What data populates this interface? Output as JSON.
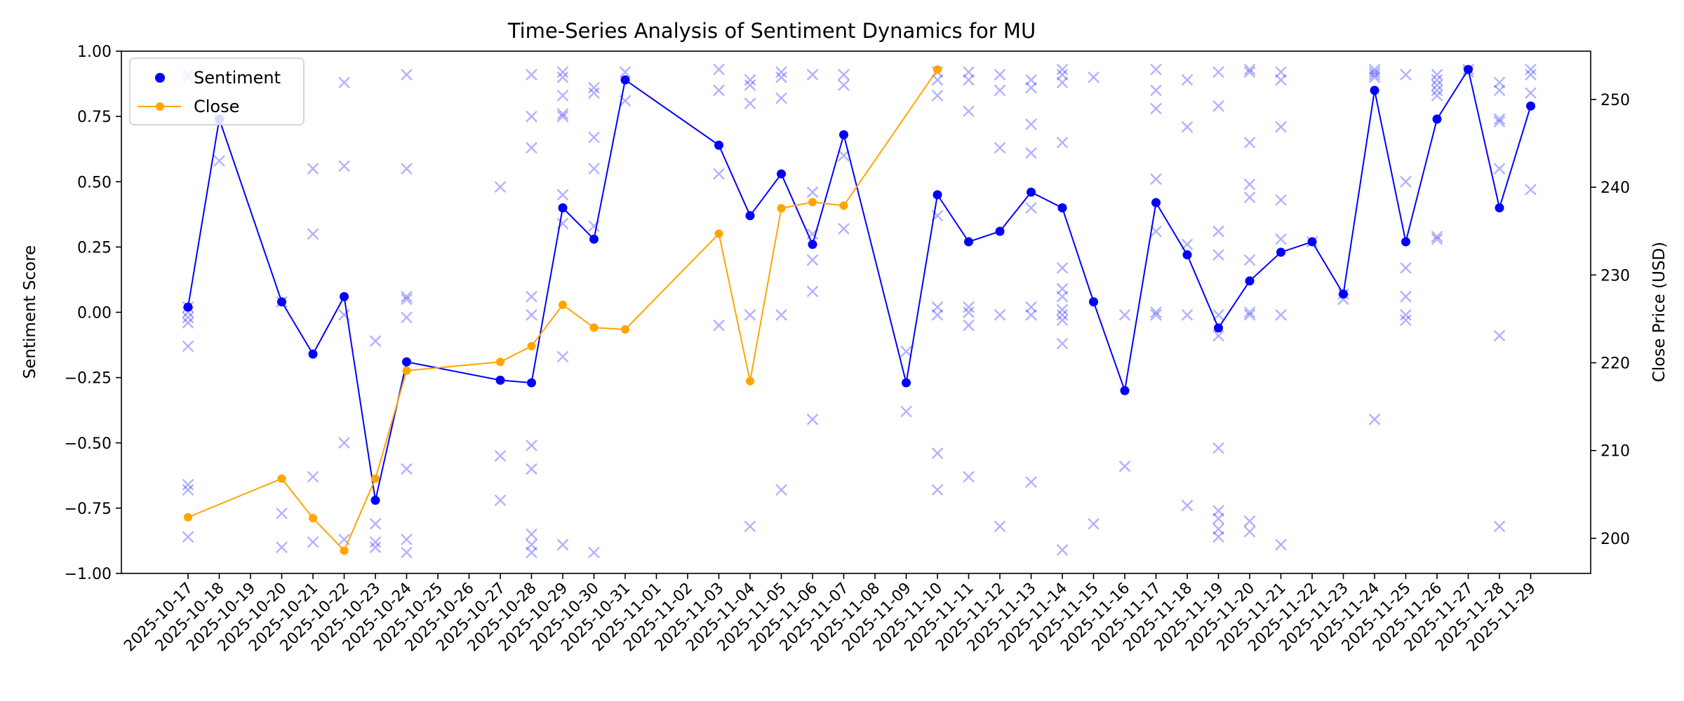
{
  "chart_data": {
    "type": "line",
    "title": "Time-Series Analysis of Sentiment Dynamics for MU",
    "ylabel": "Sentiment Score",
    "y2label": "Close Price (USD)",
    "ylim": [
      -1.0,
      1.0
    ],
    "y2lim": [
      196,
      255.5
    ],
    "y_ticks": [
      "−1.00",
      "−0.75",
      "−0.50",
      "−0.25",
      "0.00",
      "0.25",
      "0.50",
      "0.75",
      "1.00"
    ],
    "y_tick_values": [
      -1.0,
      -0.75,
      -0.5,
      -0.25,
      0.0,
      0.25,
      0.5,
      0.75,
      1.0
    ],
    "y2_ticks": [
      "200",
      "210",
      "220",
      "230",
      "240",
      "250"
    ],
    "y2_tick_values": [
      200,
      210,
      220,
      230,
      240,
      250
    ],
    "legend_position": "top-left",
    "colors": {
      "sentiment": "#0000ff",
      "close": "#ffa500",
      "scatter": "#0000ff"
    },
    "dates": [
      "2025-10-17",
      "2025-10-18",
      "2025-10-19",
      "2025-10-20",
      "2025-10-21",
      "2025-10-22",
      "2025-10-23",
      "2025-10-24",
      "2025-10-25",
      "2025-10-26",
      "2025-10-27",
      "2025-10-28",
      "2025-10-29",
      "2025-10-30",
      "2025-10-31",
      "2025-11-01",
      "2025-11-02",
      "2025-11-03",
      "2025-11-04",
      "2025-11-05",
      "2025-11-06",
      "2025-11-07",
      "2025-11-08",
      "2025-11-09",
      "2025-11-10",
      "2025-11-11",
      "2025-11-12",
      "2025-11-13",
      "2025-11-14",
      "2025-11-15",
      "2025-11-16",
      "2025-11-17",
      "2025-11-18",
      "2025-11-19",
      "2025-11-20",
      "2025-11-21",
      "2025-11-22",
      "2025-11-23",
      "2025-11-24",
      "2025-11-25",
      "2025-11-26",
      "2025-11-27",
      "2025-11-28",
      "2025-11-29"
    ],
    "series": [
      {
        "name": "Sentiment",
        "axis": "left",
        "points": [
          {
            "x": "2025-10-17",
            "y": 0.02
          },
          {
            "x": "2025-10-18",
            "y": 0.74
          },
          {
            "x": "2025-10-20",
            "y": 0.04
          },
          {
            "x": "2025-10-21",
            "y": -0.16
          },
          {
            "x": "2025-10-22",
            "y": 0.06
          },
          {
            "x": "2025-10-23",
            "y": -0.72
          },
          {
            "x": "2025-10-24",
            "y": -0.19
          },
          {
            "x": "2025-10-27",
            "y": -0.26
          },
          {
            "x": "2025-10-28",
            "y": -0.27
          },
          {
            "x": "2025-10-29",
            "y": 0.4
          },
          {
            "x": "2025-10-30",
            "y": 0.28
          },
          {
            "x": "2025-10-31",
            "y": 0.89
          },
          {
            "x": "2025-11-03",
            "y": 0.64
          },
          {
            "x": "2025-11-04",
            "y": 0.37
          },
          {
            "x": "2025-11-05",
            "y": 0.53
          },
          {
            "x": "2025-11-06",
            "y": 0.26
          },
          {
            "x": "2025-11-07",
            "y": 0.68
          },
          {
            "x": "2025-11-09",
            "y": -0.27
          },
          {
            "x": "2025-11-10",
            "y": 0.45
          },
          {
            "x": "2025-11-11",
            "y": 0.27
          },
          {
            "x": "2025-11-12",
            "y": 0.31
          },
          {
            "x": "2025-11-13",
            "y": 0.46
          },
          {
            "x": "2025-11-14",
            "y": 0.4
          },
          {
            "x": "2025-11-15",
            "y": 0.04
          },
          {
            "x": "2025-11-16",
            "y": -0.3
          },
          {
            "x": "2025-11-17",
            "y": 0.42
          },
          {
            "x": "2025-11-18",
            "y": 0.22
          },
          {
            "x": "2025-11-19",
            "y": -0.06
          },
          {
            "x": "2025-11-20",
            "y": 0.12
          },
          {
            "x": "2025-11-21",
            "y": 0.23
          },
          {
            "x": "2025-11-22",
            "y": 0.27
          },
          {
            "x": "2025-11-23",
            "y": 0.07
          },
          {
            "x": "2025-11-24",
            "y": 0.85
          },
          {
            "x": "2025-11-25",
            "y": 0.27
          },
          {
            "x": "2025-11-26",
            "y": 0.74
          },
          {
            "x": "2025-11-27",
            "y": 0.93
          },
          {
            "x": "2025-11-28",
            "y": 0.4
          },
          {
            "x": "2025-11-29",
            "y": 0.79
          }
        ]
      },
      {
        "name": "Close",
        "axis": "right",
        "points": [
          {
            "x": "2025-10-17",
            "y": 202.4
          },
          {
            "x": "2025-10-20",
            "y": 206.8
          },
          {
            "x": "2025-10-21",
            "y": 202.3
          },
          {
            "x": "2025-10-22",
            "y": 198.6
          },
          {
            "x": "2025-10-23",
            "y": 206.8
          },
          {
            "x": "2025-10-24",
            "y": 219.1
          },
          {
            "x": "2025-10-27",
            "y": 220.1
          },
          {
            "x": "2025-10-28",
            "y": 221.9
          },
          {
            "x": "2025-10-29",
            "y": 226.6
          },
          {
            "x": "2025-10-30",
            "y": 224.0
          },
          {
            "x": "2025-10-31",
            "y": 223.8
          },
          {
            "x": "2025-11-03",
            "y": 234.7
          },
          {
            "x": "2025-11-04",
            "y": 217.9
          },
          {
            "x": "2025-11-05",
            "y": 237.6
          },
          {
            "x": "2025-11-06",
            "y": 238.3
          },
          {
            "x": "2025-11-07",
            "y": 237.9
          },
          {
            "x": "2025-11-10",
            "y": 253.4
          }
        ]
      }
    ],
    "scatter_marker": "x",
    "scatter_points": [
      {
        "x": "2025-10-17",
        "y": 0.91
      },
      {
        "x": "2025-10-17",
        "y": 0.9
      },
      {
        "x": "2025-10-17",
        "y": 0.02
      },
      {
        "x": "2025-10-17",
        "y": 0.0
      },
      {
        "x": "2025-10-17",
        "y": -0.02
      },
      {
        "x": "2025-10-17",
        "y": -0.04
      },
      {
        "x": "2025-10-17",
        "y": -0.13
      },
      {
        "x": "2025-10-17",
        "y": -0.66
      },
      {
        "x": "2025-10-17",
        "y": -0.68
      },
      {
        "x": "2025-10-17",
        "y": -0.86
      },
      {
        "x": "2025-10-18",
        "y": 0.74
      },
      {
        "x": "2025-10-18",
        "y": 0.58
      },
      {
        "x": "2025-10-20",
        "y": 0.04
      },
      {
        "x": "2025-10-20",
        "y": -0.77
      },
      {
        "x": "2025-10-20",
        "y": -0.9
      },
      {
        "x": "2025-10-21",
        "y": 0.55
      },
      {
        "x": "2025-10-21",
        "y": 0.3
      },
      {
        "x": "2025-10-21",
        "y": -0.63
      },
      {
        "x": "2025-10-21",
        "y": -0.88
      },
      {
        "x": "2025-10-22",
        "y": 0.88
      },
      {
        "x": "2025-10-22",
        "y": 0.56
      },
      {
        "x": "2025-10-22",
        "y": -0.01
      },
      {
        "x": "2025-10-22",
        "y": -0.5
      },
      {
        "x": "2025-10-22",
        "y": -0.87
      },
      {
        "x": "2025-10-23",
        "y": -0.11
      },
      {
        "x": "2025-10-23",
        "y": -0.81
      },
      {
        "x": "2025-10-23",
        "y": -0.88
      },
      {
        "x": "2025-10-23",
        "y": -0.9
      },
      {
        "x": "2025-10-24",
        "y": 0.91
      },
      {
        "x": "2025-10-24",
        "y": 0.55
      },
      {
        "x": "2025-10-24",
        "y": 0.06
      },
      {
        "x": "2025-10-24",
        "y": 0.05
      },
      {
        "x": "2025-10-24",
        "y": -0.02
      },
      {
        "x": "2025-10-24",
        "y": -0.6
      },
      {
        "x": "2025-10-24",
        "y": -0.87
      },
      {
        "x": "2025-10-24",
        "y": -0.92
      },
      {
        "x": "2025-10-27",
        "y": 0.48
      },
      {
        "x": "2025-10-27",
        "y": -0.55
      },
      {
        "x": "2025-10-27",
        "y": -0.72
      },
      {
        "x": "2025-10-28",
        "y": 0.91
      },
      {
        "x": "2025-10-28",
        "y": 0.75
      },
      {
        "x": "2025-10-28",
        "y": 0.63
      },
      {
        "x": "2025-10-28",
        "y": 0.06
      },
      {
        "x": "2025-10-28",
        "y": -0.01
      },
      {
        "x": "2025-10-28",
        "y": -0.51
      },
      {
        "x": "2025-10-28",
        "y": -0.6
      },
      {
        "x": "2025-10-28",
        "y": -0.85
      },
      {
        "x": "2025-10-28",
        "y": -0.89
      },
      {
        "x": "2025-10-28",
        "y": -0.92
      },
      {
        "x": "2025-10-29",
        "y": 0.92
      },
      {
        "x": "2025-10-29",
        "y": 0.9
      },
      {
        "x": "2025-10-29",
        "y": 0.83
      },
      {
        "x": "2025-10-29",
        "y": 0.76
      },
      {
        "x": "2025-10-29",
        "y": 0.75
      },
      {
        "x": "2025-10-29",
        "y": 0.45
      },
      {
        "x": "2025-10-29",
        "y": 0.34
      },
      {
        "x": "2025-10-29",
        "y": -0.17
      },
      {
        "x": "2025-10-29",
        "y": -0.89
      },
      {
        "x": "2025-10-30",
        "y": 0.86
      },
      {
        "x": "2025-10-30",
        "y": 0.84
      },
      {
        "x": "2025-10-30",
        "y": 0.67
      },
      {
        "x": "2025-10-30",
        "y": 0.55
      },
      {
        "x": "2025-10-30",
        "y": 0.33
      },
      {
        "x": "2025-10-30",
        "y": -0.92
      },
      {
        "x": "2025-10-31",
        "y": 0.92
      },
      {
        "x": "2025-10-31",
        "y": 0.81
      },
      {
        "x": "2025-11-03",
        "y": 0.93
      },
      {
        "x": "2025-11-03",
        "y": 0.85
      },
      {
        "x": "2025-11-03",
        "y": 0.53
      },
      {
        "x": "2025-11-03",
        "y": -0.05
      },
      {
        "x": "2025-11-04",
        "y": 0.89
      },
      {
        "x": "2025-11-04",
        "y": 0.87
      },
      {
        "x": "2025-11-04",
        "y": 0.8
      },
      {
        "x": "2025-11-04",
        "y": -0.01
      },
      {
        "x": "2025-11-04",
        "y": -0.82
      },
      {
        "x": "2025-11-05",
        "y": 0.92
      },
      {
        "x": "2025-11-05",
        "y": 0.9
      },
      {
        "x": "2025-11-05",
        "y": 0.82
      },
      {
        "x": "2025-11-05",
        "y": -0.01
      },
      {
        "x": "2025-11-05",
        "y": -0.68
      },
      {
        "x": "2025-11-06",
        "y": 0.91
      },
      {
        "x": "2025-11-06",
        "y": 0.46
      },
      {
        "x": "2025-11-06",
        "y": 0.3
      },
      {
        "x": "2025-11-06",
        "y": 0.2
      },
      {
        "x": "2025-11-06",
        "y": 0.08
      },
      {
        "x": "2025-11-06",
        "y": -0.41
      },
      {
        "x": "2025-11-07",
        "y": 0.91
      },
      {
        "x": "2025-11-07",
        "y": 0.87
      },
      {
        "x": "2025-11-07",
        "y": 0.6
      },
      {
        "x": "2025-11-07",
        "y": 0.32
      },
      {
        "x": "2025-11-09",
        "y": -0.15
      },
      {
        "x": "2025-11-09",
        "y": -0.38
      },
      {
        "x": "2025-11-10",
        "y": 0.92
      },
      {
        "x": "2025-11-10",
        "y": 0.89
      },
      {
        "x": "2025-11-10",
        "y": 0.83
      },
      {
        "x": "2025-11-10",
        "y": 0.37
      },
      {
        "x": "2025-11-10",
        "y": 0.02
      },
      {
        "x": "2025-11-10",
        "y": -0.01
      },
      {
        "x": "2025-11-10",
        "y": -0.54
      },
      {
        "x": "2025-11-10",
        "y": -0.68
      },
      {
        "x": "2025-11-11",
        "y": 0.92
      },
      {
        "x": "2025-11-11",
        "y": 0.89
      },
      {
        "x": "2025-11-11",
        "y": 0.77
      },
      {
        "x": "2025-11-11",
        "y": 0.02
      },
      {
        "x": "2025-11-11",
        "y": 0.0
      },
      {
        "x": "2025-11-11",
        "y": -0.05
      },
      {
        "x": "2025-11-11",
        "y": -0.63
      },
      {
        "x": "2025-11-12",
        "y": 0.91
      },
      {
        "x": "2025-11-12",
        "y": 0.85
      },
      {
        "x": "2025-11-12",
        "y": 0.63
      },
      {
        "x": "2025-11-12",
        "y": -0.01
      },
      {
        "x": "2025-11-12",
        "y": -0.82
      },
      {
        "x": "2025-11-13",
        "y": 0.89
      },
      {
        "x": "2025-11-13",
        "y": 0.86
      },
      {
        "x": "2025-11-13",
        "y": 0.72
      },
      {
        "x": "2025-11-13",
        "y": 0.61
      },
      {
        "x": "2025-11-13",
        "y": 0.4
      },
      {
        "x": "2025-11-13",
        "y": 0.02
      },
      {
        "x": "2025-11-13",
        "y": -0.01
      },
      {
        "x": "2025-11-13",
        "y": -0.65
      },
      {
        "x": "2025-11-14",
        "y": 0.93
      },
      {
        "x": "2025-11-14",
        "y": 0.91
      },
      {
        "x": "2025-11-14",
        "y": 0.88
      },
      {
        "x": "2025-11-14",
        "y": 0.65
      },
      {
        "x": "2025-11-14",
        "y": 0.17
      },
      {
        "x": "2025-11-14",
        "y": 0.09
      },
      {
        "x": "2025-11-14",
        "y": 0.06
      },
      {
        "x": "2025-11-14",
        "y": 0.01
      },
      {
        "x": "2025-11-14",
        "y": -0.01
      },
      {
        "x": "2025-11-14",
        "y": -0.03
      },
      {
        "x": "2025-11-14",
        "y": -0.12
      },
      {
        "x": "2025-11-14",
        "y": -0.91
      },
      {
        "x": "2025-11-15",
        "y": 0.9
      },
      {
        "x": "2025-11-15",
        "y": -0.81
      },
      {
        "x": "2025-11-16",
        "y": -0.01
      },
      {
        "x": "2025-11-16",
        "y": -0.59
      },
      {
        "x": "2025-11-17",
        "y": 0.93
      },
      {
        "x": "2025-11-17",
        "y": 0.85
      },
      {
        "x": "2025-11-17",
        "y": 0.78
      },
      {
        "x": "2025-11-17",
        "y": 0.51
      },
      {
        "x": "2025-11-17",
        "y": 0.31
      },
      {
        "x": "2025-11-17",
        "y": 0.0
      },
      {
        "x": "2025-11-17",
        "y": -0.01
      },
      {
        "x": "2025-11-18",
        "y": 0.89
      },
      {
        "x": "2025-11-18",
        "y": 0.71
      },
      {
        "x": "2025-11-18",
        "y": 0.26
      },
      {
        "x": "2025-11-18",
        "y": -0.01
      },
      {
        "x": "2025-11-18",
        "y": -0.74
      },
      {
        "x": "2025-11-19",
        "y": 0.92
      },
      {
        "x": "2025-11-19",
        "y": 0.79
      },
      {
        "x": "2025-11-19",
        "y": 0.31
      },
      {
        "x": "2025-11-19",
        "y": 0.22
      },
      {
        "x": "2025-11-19",
        "y": -0.01
      },
      {
        "x": "2025-11-19",
        "y": -0.09
      },
      {
        "x": "2025-11-19",
        "y": -0.52
      },
      {
        "x": "2025-11-19",
        "y": -0.76
      },
      {
        "x": "2025-11-19",
        "y": -0.79
      },
      {
        "x": "2025-11-19",
        "y": -0.83
      },
      {
        "x": "2025-11-19",
        "y": -0.86
      },
      {
        "x": "2025-11-20",
        "y": 0.93
      },
      {
        "x": "2025-11-20",
        "y": 0.92
      },
      {
        "x": "2025-11-20",
        "y": 0.65
      },
      {
        "x": "2025-11-20",
        "y": 0.49
      },
      {
        "x": "2025-11-20",
        "y": 0.44
      },
      {
        "x": "2025-11-20",
        "y": 0.2
      },
      {
        "x": "2025-11-20",
        "y": 0.0
      },
      {
        "x": "2025-11-20",
        "y": -0.01
      },
      {
        "x": "2025-11-20",
        "y": -0.8
      },
      {
        "x": "2025-11-20",
        "y": -0.84
      },
      {
        "x": "2025-11-21",
        "y": 0.92
      },
      {
        "x": "2025-11-21",
        "y": 0.89
      },
      {
        "x": "2025-11-21",
        "y": 0.71
      },
      {
        "x": "2025-11-21",
        "y": 0.43
      },
      {
        "x": "2025-11-21",
        "y": 0.28
      },
      {
        "x": "2025-11-21",
        "y": -0.01
      },
      {
        "x": "2025-11-21",
        "y": -0.89
      },
      {
        "x": "2025-11-22",
        "y": 0.27
      },
      {
        "x": "2025-11-23",
        "y": 0.07
      },
      {
        "x": "2025-11-23",
        "y": 0.05
      },
      {
        "x": "2025-11-24",
        "y": 0.93
      },
      {
        "x": "2025-11-24",
        "y": 0.92
      },
      {
        "x": "2025-11-24",
        "y": 0.91
      },
      {
        "x": "2025-11-24",
        "y": 0.9
      },
      {
        "x": "2025-11-24",
        "y": -0.41
      },
      {
        "x": "2025-11-25",
        "y": 0.91
      },
      {
        "x": "2025-11-25",
        "y": 0.5
      },
      {
        "x": "2025-11-25",
        "y": 0.17
      },
      {
        "x": "2025-11-25",
        "y": 0.06
      },
      {
        "x": "2025-11-25",
        "y": -0.01
      },
      {
        "x": "2025-11-25",
        "y": -0.03
      },
      {
        "x": "2025-11-26",
        "y": 0.91
      },
      {
        "x": "2025-11-26",
        "y": 0.89
      },
      {
        "x": "2025-11-26",
        "y": 0.87
      },
      {
        "x": "2025-11-26",
        "y": 0.85
      },
      {
        "x": "2025-11-26",
        "y": 0.83
      },
      {
        "x": "2025-11-26",
        "y": 0.29
      },
      {
        "x": "2025-11-26",
        "y": 0.28
      },
      {
        "x": "2025-11-27",
        "y": 0.93
      },
      {
        "x": "2025-11-27",
        "y": 0.92
      },
      {
        "x": "2025-11-28",
        "y": 0.88
      },
      {
        "x": "2025-11-28",
        "y": 0.85
      },
      {
        "x": "2025-11-28",
        "y": 0.74
      },
      {
        "x": "2025-11-28",
        "y": 0.73
      },
      {
        "x": "2025-11-28",
        "y": 0.55
      },
      {
        "x": "2025-11-28",
        "y": -0.09
      },
      {
        "x": "2025-11-28",
        "y": -0.82
      },
      {
        "x": "2025-11-29",
        "y": 0.93
      },
      {
        "x": "2025-11-29",
        "y": 0.91
      },
      {
        "x": "2025-11-29",
        "y": 0.84
      },
      {
        "x": "2025-11-29",
        "y": 0.47
      }
    ]
  }
}
